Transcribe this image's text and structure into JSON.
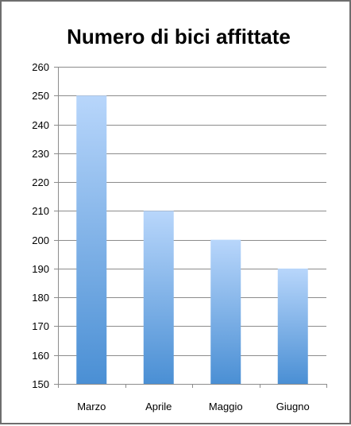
{
  "chart_data": {
    "type": "bar",
    "title": "Numero di bici affittate",
    "categories": [
      "Marzo",
      "Aprile",
      "Maggio",
      "Giugno"
    ],
    "values": [
      250,
      210,
      200,
      190
    ],
    "ylim": [
      150,
      260
    ],
    "yticks": [
      150,
      160,
      170,
      180,
      190,
      200,
      210,
      220,
      230,
      240,
      250,
      260
    ],
    "grid": true,
    "legend": "none",
    "colors": {
      "bar_top": "#b8d6fb",
      "bar_bottom": "#4a8fd4",
      "grid": "#8c8c8c",
      "axis": "#8c8c8c"
    }
  }
}
